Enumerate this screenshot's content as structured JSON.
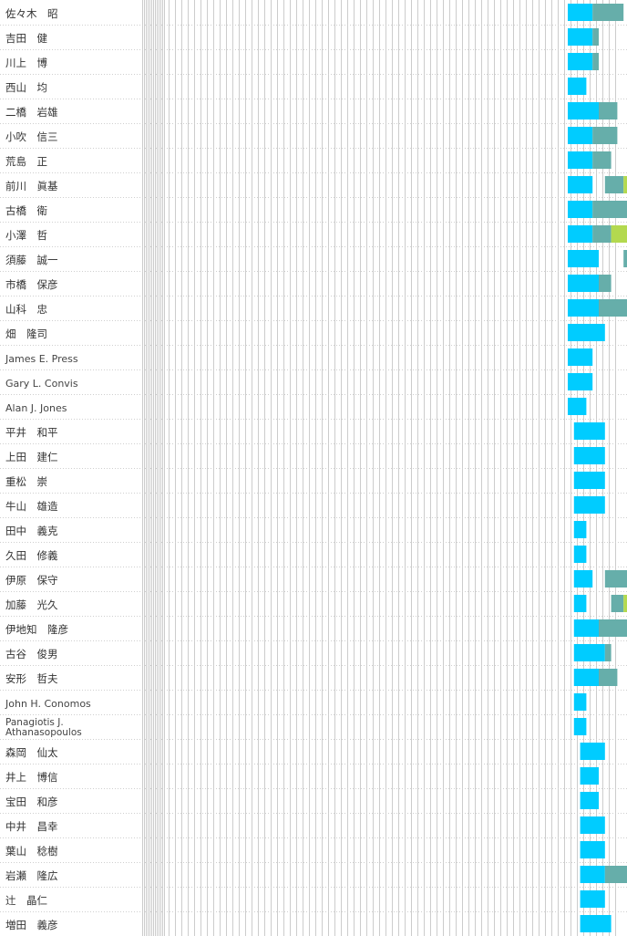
{
  "colors": {
    "segment_primary": "#00ccff",
    "segment_secondary": "#66aeaa",
    "segment_tertiary": "#b3d94f",
    "grid_line": "#cccccc",
    "row_separator": "#cfcfcf",
    "label_text": "#333333"
  },
  "chart_data": {
    "type": "bar",
    "orientation": "horizontal",
    "stacked": "timeline",
    "grid": true,
    "x_axis_labels_visible": false,
    "categories": [
      "佐々木　昭",
      "吉田　健",
      "川上　博",
      "西山　均",
      "二橋　岩雄",
      "小吹　信三",
      "荒島　正",
      "前川　眞基",
      "古橋　衛",
      "小澤　哲",
      "須藤　誠一",
      "市橋　保彦",
      "山科　忠",
      "畑　隆司",
      "James E. Press",
      "Gary L. Convis",
      "Alan J. Jones",
      "平井　和平",
      "上田　建仁",
      "重松　崇",
      "牛山　雄造",
      "田中　義克",
      "久田　修義",
      "伊原　保守",
      "加藤　光久",
      "伊地知　隆彦",
      "古谷　俊男",
      "安形　哲夫",
      "John H. Conomos",
      "Panagiotis J. Athanasopoulos",
      "森岡　仙太",
      "井上　博信",
      "宝田　和彦",
      "中井　昌幸",
      "葉山　稔樹",
      "岩瀬　隆広",
      "辻　晶仁",
      "増田　義彦"
    ],
    "rows": [
      [
        {
          "start": 0,
          "end": 4,
          "s": 1
        },
        {
          "start": 4,
          "end": 9,
          "s": 2
        }
      ],
      [
        {
          "start": 0,
          "end": 4,
          "s": 1
        },
        {
          "start": 4,
          "end": 5,
          "s": 2
        }
      ],
      [
        {
          "start": 0,
          "end": 4,
          "s": 1
        },
        {
          "start": 4,
          "end": 5,
          "s": 2
        }
      ],
      [
        {
          "start": 0,
          "end": 3,
          "s": 1
        }
      ],
      [
        {
          "start": 0,
          "end": 5,
          "s": 1
        },
        {
          "start": 5,
          "end": 8,
          "s": 2
        }
      ],
      [
        {
          "start": 0,
          "end": 4,
          "s": 1
        },
        {
          "start": 4,
          "end": 8,
          "s": 2
        }
      ],
      [
        {
          "start": 0,
          "end": 4,
          "s": 1
        },
        {
          "start": 4,
          "end": 7,
          "s": 2
        }
      ],
      [
        {
          "start": 0,
          "end": 4,
          "s": 1
        },
        {
          "start": 6,
          "end": 9,
          "s": 2
        },
        {
          "start": 9,
          "end": 10,
          "s": 3
        }
      ],
      [
        {
          "start": 0,
          "end": 4,
          "s": 1
        },
        {
          "start": 4,
          "end": 10,
          "s": 2
        }
      ],
      [
        {
          "start": 0,
          "end": 4,
          "s": 1
        },
        {
          "start": 4,
          "end": 7,
          "s": 2
        },
        {
          "start": 7,
          "end": 10,
          "s": 3
        }
      ],
      [
        {
          "start": 0,
          "end": 5,
          "s": 1
        },
        {
          "start": 9,
          "end": 10,
          "s": 2
        }
      ],
      [
        {
          "start": 0,
          "end": 5,
          "s": 1
        },
        {
          "start": 5,
          "end": 7,
          "s": 2
        }
      ],
      [
        {
          "start": 0,
          "end": 5,
          "s": 1
        },
        {
          "start": 5,
          "end": 10,
          "s": 2
        }
      ],
      [
        {
          "start": 0,
          "end": 6,
          "s": 1
        }
      ],
      [
        {
          "start": 0,
          "end": 4,
          "s": 1
        }
      ],
      [
        {
          "start": 0,
          "end": 4,
          "s": 1
        }
      ],
      [
        {
          "start": 0,
          "end": 3,
          "s": 1
        }
      ],
      [
        {
          "start": 1,
          "end": 6,
          "s": 1
        }
      ],
      [
        {
          "start": 1,
          "end": 6,
          "s": 1
        }
      ],
      [
        {
          "start": 1,
          "end": 6,
          "s": 1
        }
      ],
      [
        {
          "start": 1,
          "end": 6,
          "s": 1
        }
      ],
      [
        {
          "start": 1,
          "end": 3,
          "s": 1
        }
      ],
      [
        {
          "start": 1,
          "end": 3,
          "s": 1
        }
      ],
      [
        {
          "start": 1,
          "end": 4,
          "s": 1
        },
        {
          "start": 6,
          "end": 10,
          "s": 2
        }
      ],
      [
        {
          "start": 1,
          "end": 3,
          "s": 1
        },
        {
          "start": 7,
          "end": 9,
          "s": 2
        },
        {
          "start": 9,
          "end": 10,
          "s": 3
        }
      ],
      [
        {
          "start": 1,
          "end": 5,
          "s": 1
        },
        {
          "start": 5,
          "end": 10,
          "s": 2
        }
      ],
      [
        {
          "start": 1,
          "end": 6,
          "s": 1
        },
        {
          "start": 6,
          "end": 7,
          "s": 2
        }
      ],
      [
        {
          "start": 1,
          "end": 5,
          "s": 1
        },
        {
          "start": 5,
          "end": 8,
          "s": 2
        }
      ],
      [
        {
          "start": 1,
          "end": 3,
          "s": 1
        }
      ],
      [
        {
          "start": 1,
          "end": 3,
          "s": 1
        }
      ],
      [
        {
          "start": 2,
          "end": 6,
          "s": 1
        }
      ],
      [
        {
          "start": 2,
          "end": 5,
          "s": 1
        }
      ],
      [
        {
          "start": 2,
          "end": 5,
          "s": 1
        }
      ],
      [
        {
          "start": 2,
          "end": 6,
          "s": 1
        }
      ],
      [
        {
          "start": 2,
          "end": 6,
          "s": 1
        }
      ],
      [
        {
          "start": 2,
          "end": 6,
          "s": 1
        },
        {
          "start": 6,
          "end": 10,
          "s": 2
        }
      ],
      [
        {
          "start": 2,
          "end": 6,
          "s": 1
        }
      ],
      [
        {
          "start": 2,
          "end": 7,
          "s": 1
        }
      ]
    ]
  }
}
